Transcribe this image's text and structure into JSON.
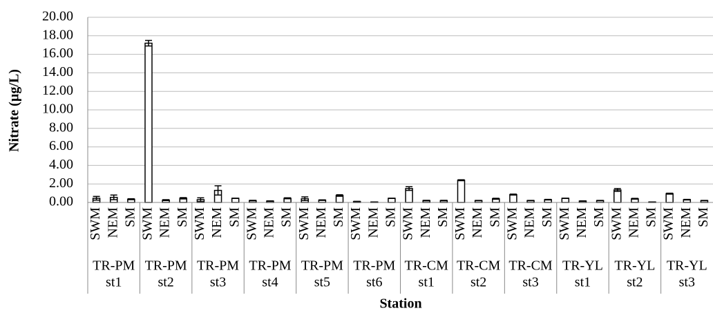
{
  "chart_data": {
    "type": "bar",
    "y_label": "Nitrate (µg/L)",
    "x_label": "Station",
    "categories": [
      "SWM",
      "NEM",
      "SM",
      "SWM",
      "NEM",
      "SM",
      "SWM",
      "NEM",
      "SM",
      "SWM",
      "NEM",
      "SM",
      "SWM",
      "NEM",
      "SM",
      "SWM",
      "NEM",
      "SM",
      "SWM",
      "NEM",
      "SM",
      "SWM",
      "NEM",
      "SM",
      "SWM",
      "NEM",
      "SM",
      "SWM",
      "NEM",
      "SM",
      "SWM",
      "NEM",
      "SM",
      "SWM",
      "NEM",
      "SM"
    ],
    "groups": [
      [
        "TR-PM",
        "st1"
      ],
      [
        "TR-PM",
        "st2"
      ],
      [
        "TR-PM",
        "st3"
      ],
      [
        "TR-PM",
        "st4"
      ],
      [
        "TR-PM",
        "st5"
      ],
      [
        "TR-PM",
        "st6"
      ],
      [
        "TR-CM",
        "st1"
      ],
      [
        "TR-CM",
        "st2"
      ],
      [
        "TR-CM",
        "st3"
      ],
      [
        "TR-YL",
        "st1"
      ],
      [
        "TR-YL",
        "st2"
      ],
      [
        "TR-YL",
        "st3"
      ]
    ],
    "values": [
      0.45,
      0.55,
      0.35,
      17.2,
      0.25,
      0.45,
      0.3,
      1.3,
      0.45,
      0.2,
      0.15,
      0.45,
      0.4,
      0.25,
      0.75,
      0.1,
      0.05,
      0.45,
      1.5,
      0.2,
      0.2,
      2.4,
      0.2,
      0.4,
      0.85,
      0.2,
      0.3,
      0.45,
      0.15,
      0.2,
      1.35,
      0.4,
      0.05,
      0.95,
      0.3,
      0.2
    ],
    "errors": [
      0.2,
      0.25,
      0.05,
      0.3,
      0.05,
      0.07,
      0.2,
      0.5,
      0,
      0.03,
      0.02,
      0.05,
      0.2,
      0.03,
      0.08,
      0.02,
      0.01,
      0,
      0.2,
      0.03,
      0.03,
      0.05,
      0.02,
      0.05,
      0.05,
      0.02,
      0.03,
      0,
      0.02,
      0.02,
      0.15,
      0.04,
      0.01,
      0.05,
      0.03,
      0.02
    ],
    "color": "#ffffff",
    "ylim": [
      0,
      20
    ],
    "yticks": [
      {
        "value": 0,
        "label": "0.00"
      },
      {
        "value": 2,
        "label": "2.00"
      },
      {
        "value": 4,
        "label": "4.00"
      },
      {
        "value": 6,
        "label": "6.00"
      },
      {
        "value": 8,
        "label": "8.00"
      },
      {
        "value": 10,
        "label": "10.00"
      },
      {
        "value": 12,
        "label": "12.00"
      },
      {
        "value": 14,
        "label": "14.00"
      },
      {
        "value": 16,
        "label": "16.00"
      },
      {
        "value": 18,
        "label": "18.00"
      },
      {
        "value": 20,
        "label": "20.00"
      }
    ],
    "grid": true
  }
}
